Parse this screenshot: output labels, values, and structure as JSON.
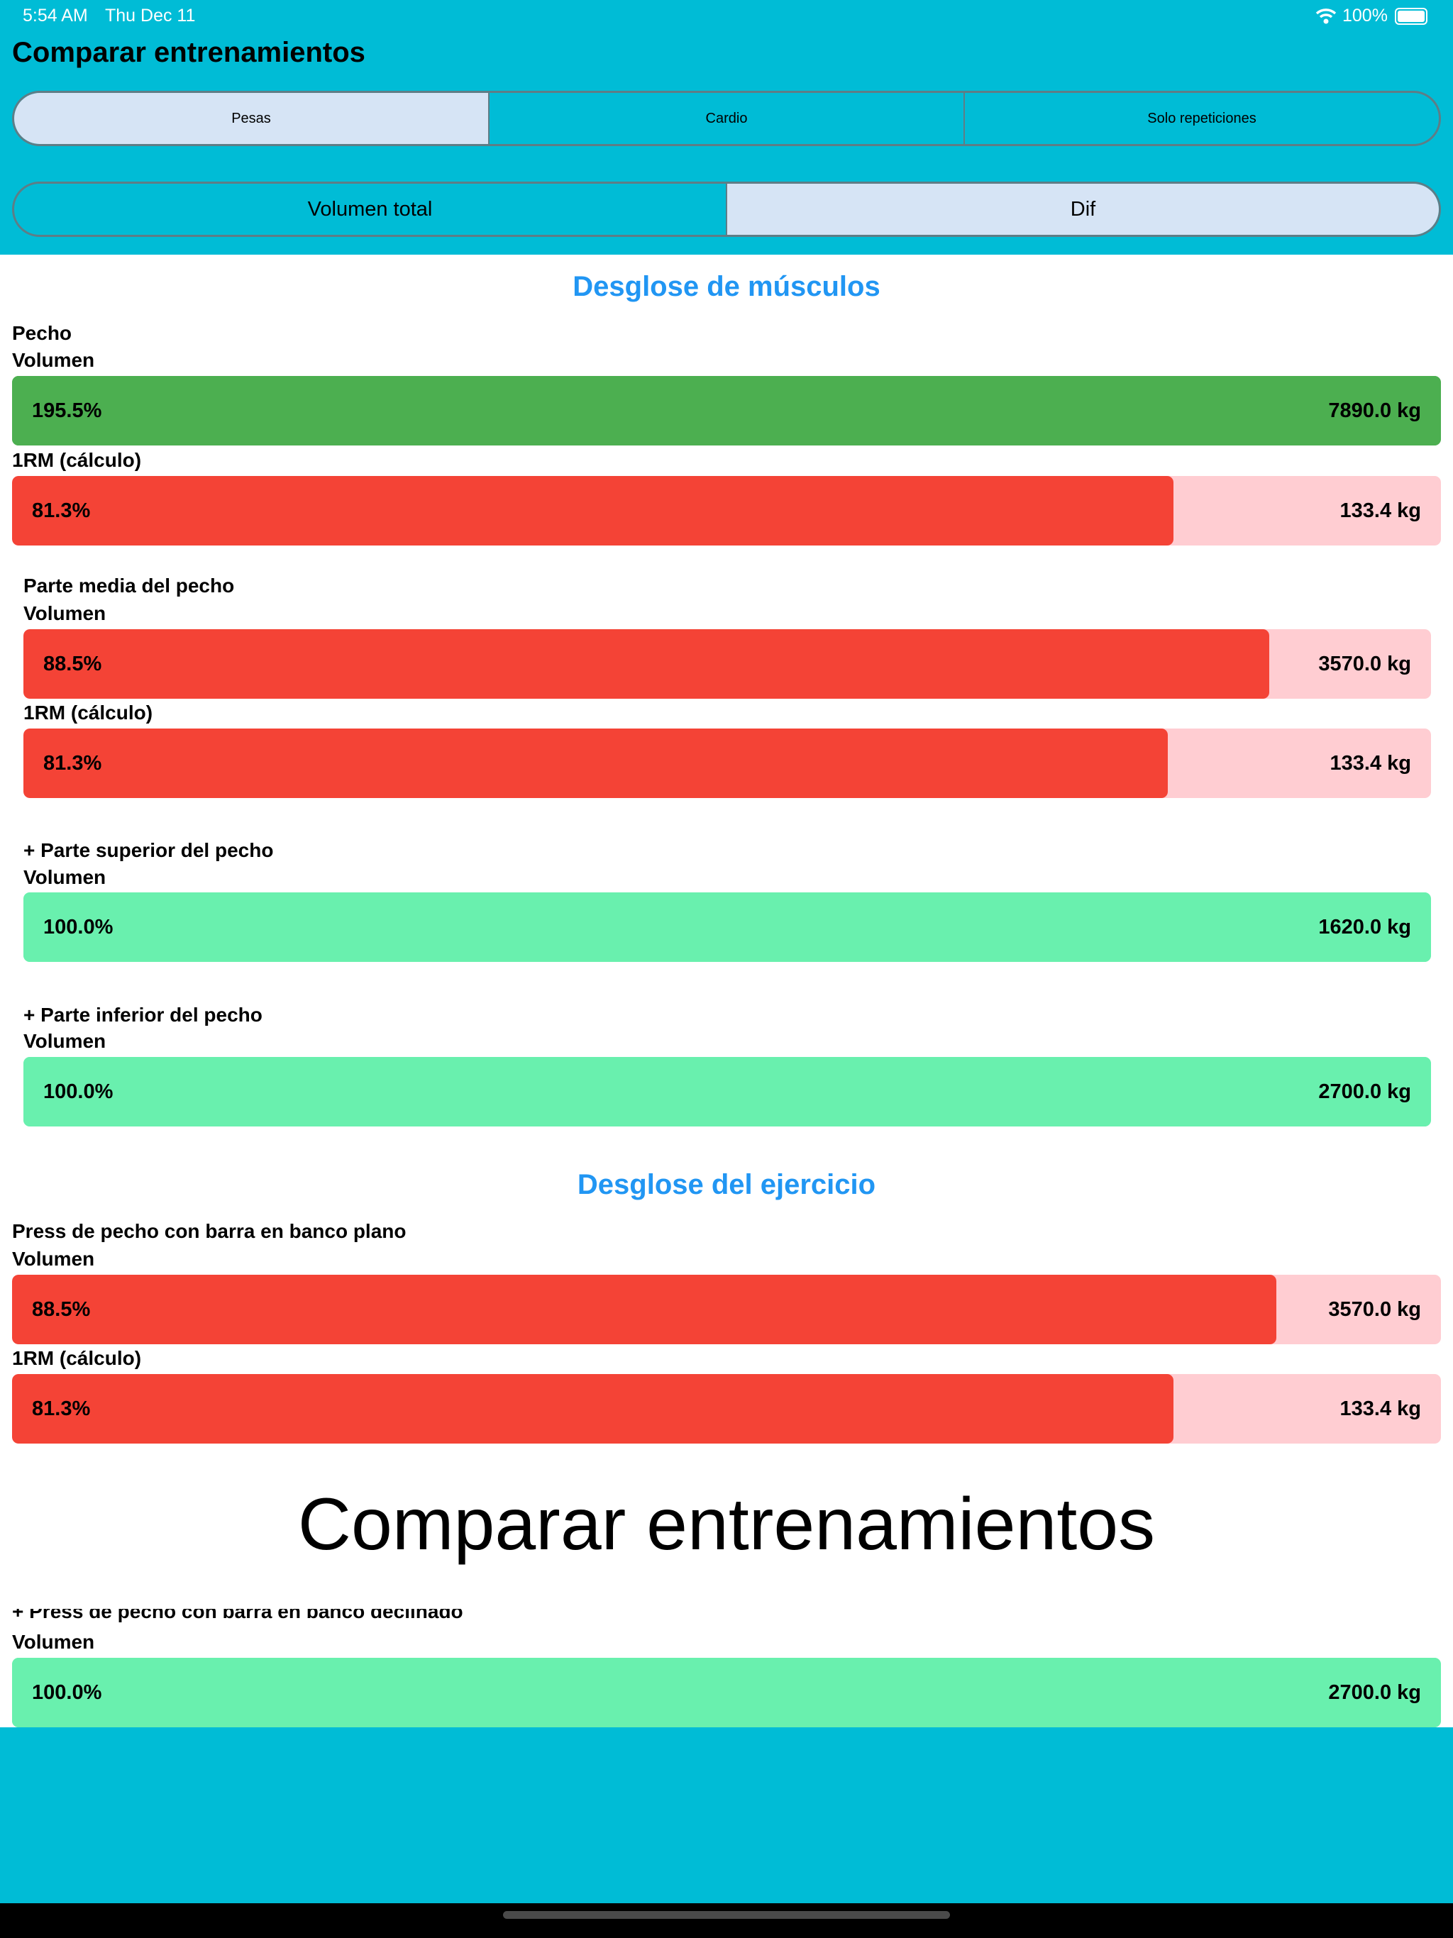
{
  "status_bar": {
    "time": "5:54 AM",
    "date": "Thu Dec 11",
    "battery": "100%",
    "wifi_icon": "wifi-icon",
    "battery_icon": "battery-icon"
  },
  "header": {
    "title": "Comparar entrenamientos"
  },
  "type_tabs": [
    {
      "label": "Pesas",
      "selected": true
    },
    {
      "label": "Cardio",
      "selected": false
    },
    {
      "label": "Solo repeticiones",
      "selected": false
    }
  ],
  "mode_tabs": [
    {
      "label": "Volumen total",
      "selected": false
    },
    {
      "label": "Dif",
      "selected": true
    }
  ],
  "colors": {
    "header": "#00BCD6",
    "accent_heading": "#2196F3",
    "increase": "#4CAF50",
    "decrease": "#F44336",
    "decrease_track": "#FFCDD2",
    "equal": "#69F0AE"
  },
  "muscle_section": {
    "title": "Desglose de músculos",
    "groups": [
      {
        "name": "Pecho",
        "metrics": [
          {
            "label": "Volumen",
            "percent": "195.5%",
            "value": "7890.0 kg",
            "fraction": 1.955
          },
          {
            "label": "1RM (cálculo)",
            "percent": "81.3%",
            "value": "133.4 kg",
            "fraction": 0.813
          }
        ]
      },
      {
        "name": "Parte media del pecho",
        "metrics": [
          {
            "label": "Volumen",
            "percent": "88.5%",
            "value": "3570.0 kg",
            "fraction": 0.885
          },
          {
            "label": "1RM (cálculo)",
            "percent": "81.3%",
            "value": "133.4 kg",
            "fraction": 0.813
          }
        ]
      },
      {
        "name": "+ Parte superior del pecho",
        "metrics": [
          {
            "label": "Volumen",
            "percent": "100.0%",
            "value": "1620.0 kg",
            "fraction": 1.0
          }
        ]
      },
      {
        "name": "+ Parte inferior del pecho",
        "metrics": [
          {
            "label": "Volumen",
            "percent": "100.0%",
            "value": "2700.0 kg",
            "fraction": 1.0
          }
        ]
      }
    ]
  },
  "exercise_section": {
    "title": "Desglose del ejercicio",
    "groups": [
      {
        "name": "Press de pecho con barra en banco plano",
        "metrics": [
          {
            "label": "Volumen",
            "percent": "88.5%",
            "value": "3570.0 kg",
            "fraction": 0.885
          },
          {
            "label": "1RM (cálculo)",
            "percent": "81.3%",
            "value": "133.4 kg",
            "fraction": 0.813
          }
        ]
      },
      {
        "name": "+ Press de pecho con barra en banco declinado",
        "metrics": [
          {
            "label": "Volumen",
            "percent": "100.0%",
            "value": "2700.0 kg",
            "fraction": 1.0
          }
        ]
      }
    ]
  },
  "overlay_title": "Comparar entrenamientos"
}
